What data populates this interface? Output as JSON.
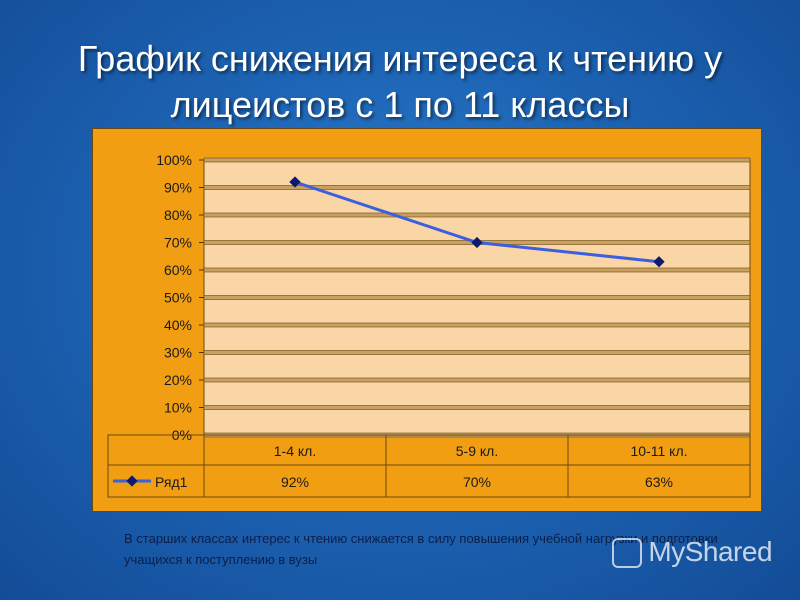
{
  "slide": {
    "title": "График снижения интереса к чтению у лицеистов с 1 по 11 классы",
    "caption": "В старших классах интерес к чтению снижается в силу повышения учебной нагрузки и подготовки учащихся к поступлению в вузы",
    "watermark": "MyShared",
    "watermark_icon": "myshared-logo-icon"
  },
  "colors": {
    "background": "#1d64b4",
    "chart_area": "#f29e12",
    "plot_area": "#fad5a5",
    "line": "#3a5fe0",
    "marker": "#0d1a6e",
    "title_text": "#ffffff"
  },
  "chart_data": {
    "type": "line",
    "categories": [
      "1-4 кл.",
      "5-9 кл.",
      "10-11 кл."
    ],
    "series": [
      {
        "name": "Ряд1",
        "values": [
          92,
          70,
          63
        ],
        "labels": [
          "92%",
          "70%",
          "63%"
        ]
      }
    ],
    "yticks": [
      "0%",
      "10%",
      "20%",
      "30%",
      "40%",
      "50%",
      "60%",
      "70%",
      "80%",
      "90%",
      "100%"
    ],
    "ylim": [
      0,
      100
    ],
    "grid": true,
    "legend": "data-table-left",
    "data_table": true
  }
}
